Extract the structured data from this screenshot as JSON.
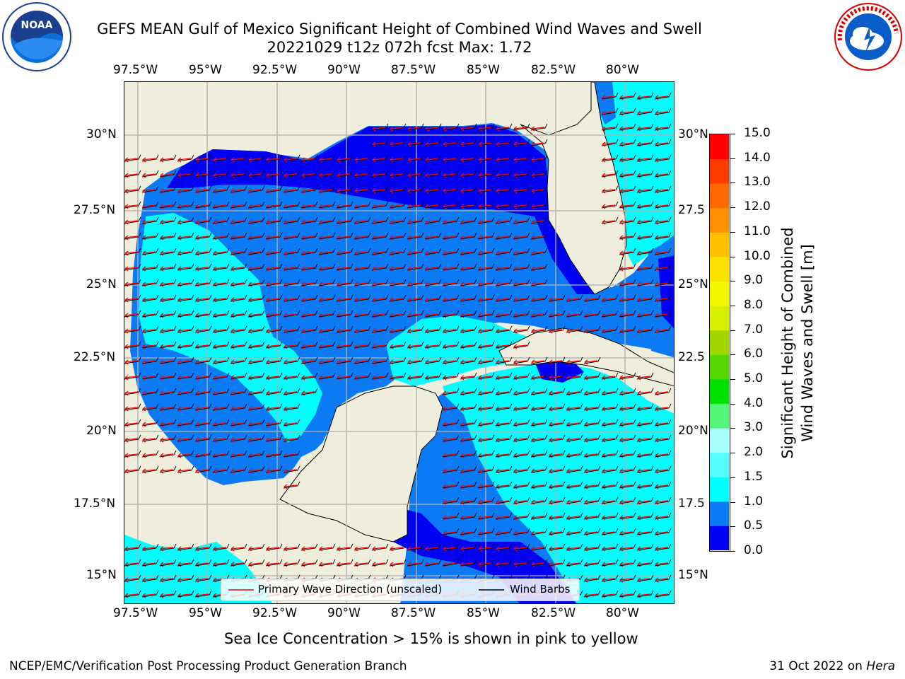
{
  "title": {
    "line1": "GEFS MEAN Gulf of Mexico Significant Height of Combined Wind Waves and Swell",
    "line2": "20221029 t12z 072h fcst   Max: 1.72"
  },
  "logos": {
    "left": {
      "text": "NOAA",
      "ring_text": "NATIONAL OCEANIC AND ATMOSPHERIC ADMINISTRATION · U.S. DEPARTMENT OF COMMERCE"
    },
    "right": {
      "ring_text": "NATIONAL WEATHER SERVICE"
    }
  },
  "map": {
    "lon_labels": [
      "97.5°W",
      "95°W",
      "92.5°W",
      "90°W",
      "87.5°W",
      "85°W",
      "82.5°W",
      "80°W"
    ],
    "lat_labels": [
      "30°N",
      "27.5°N",
      "25°N",
      "22.5°N",
      "20°N",
      "17.5°N",
      "15°N"
    ],
    "lat_labels_right": [
      "30°N",
      "27.5",
      "25°N",
      "22.5",
      "20°N",
      "17.5",
      "15°N"
    ],
    "extent": {
      "lon": [
        -98,
        -78.2
      ],
      "lat": [
        14,
        31.8
      ]
    },
    "colors": {
      "land": "#efeddb",
      "ocean_0_0.5": "#0000f5",
      "ocean_0.5_1": "#0a7af5",
      "ocean_1_1.5": "#00fefe",
      "grid": "#b0b0b0",
      "wave_arrow": "#ff0000",
      "wind_barb": "#000000"
    }
  },
  "legend": {
    "items": [
      {
        "label": "Primary Wave Direction (unscaled)",
        "color": "#ff0000"
      },
      {
        "label": "Wind Barbs",
        "color": "#000000"
      }
    ]
  },
  "colorbar": {
    "label_line1": "Significant Height of Combined",
    "label_line2": "Wind Waves and Swell [m]",
    "ticks": [
      "0.0",
      "0.5",
      "1.0",
      "1.5",
      "2.0",
      "3.0",
      "4.0",
      "5.0",
      "6.0",
      "7.0",
      "8.0",
      "9.0",
      "10.0",
      "11.0",
      "12.0",
      "13.0",
      "14.0",
      "15.0"
    ],
    "colors": [
      "#0000f5",
      "#0a7af5",
      "#00fefe",
      "#55fefe",
      "#aafefe",
      "#55f57a",
      "#00e100",
      "#55d700",
      "#a0d700",
      "#d7f000",
      "#f5f500",
      "#fae100",
      "#ffc000",
      "#ff9000",
      "#ff6800",
      "#ff3c00",
      "#ff0000"
    ]
  },
  "footer": {
    "caption": "Sea Ice Concentration > 15% is shown in pink to yellow",
    "left": "NCEP/EMC/Verification Post Processing Product Generation Branch",
    "right_prefix": "31 Oct 2022 on ",
    "right_host": "Hera"
  }
}
